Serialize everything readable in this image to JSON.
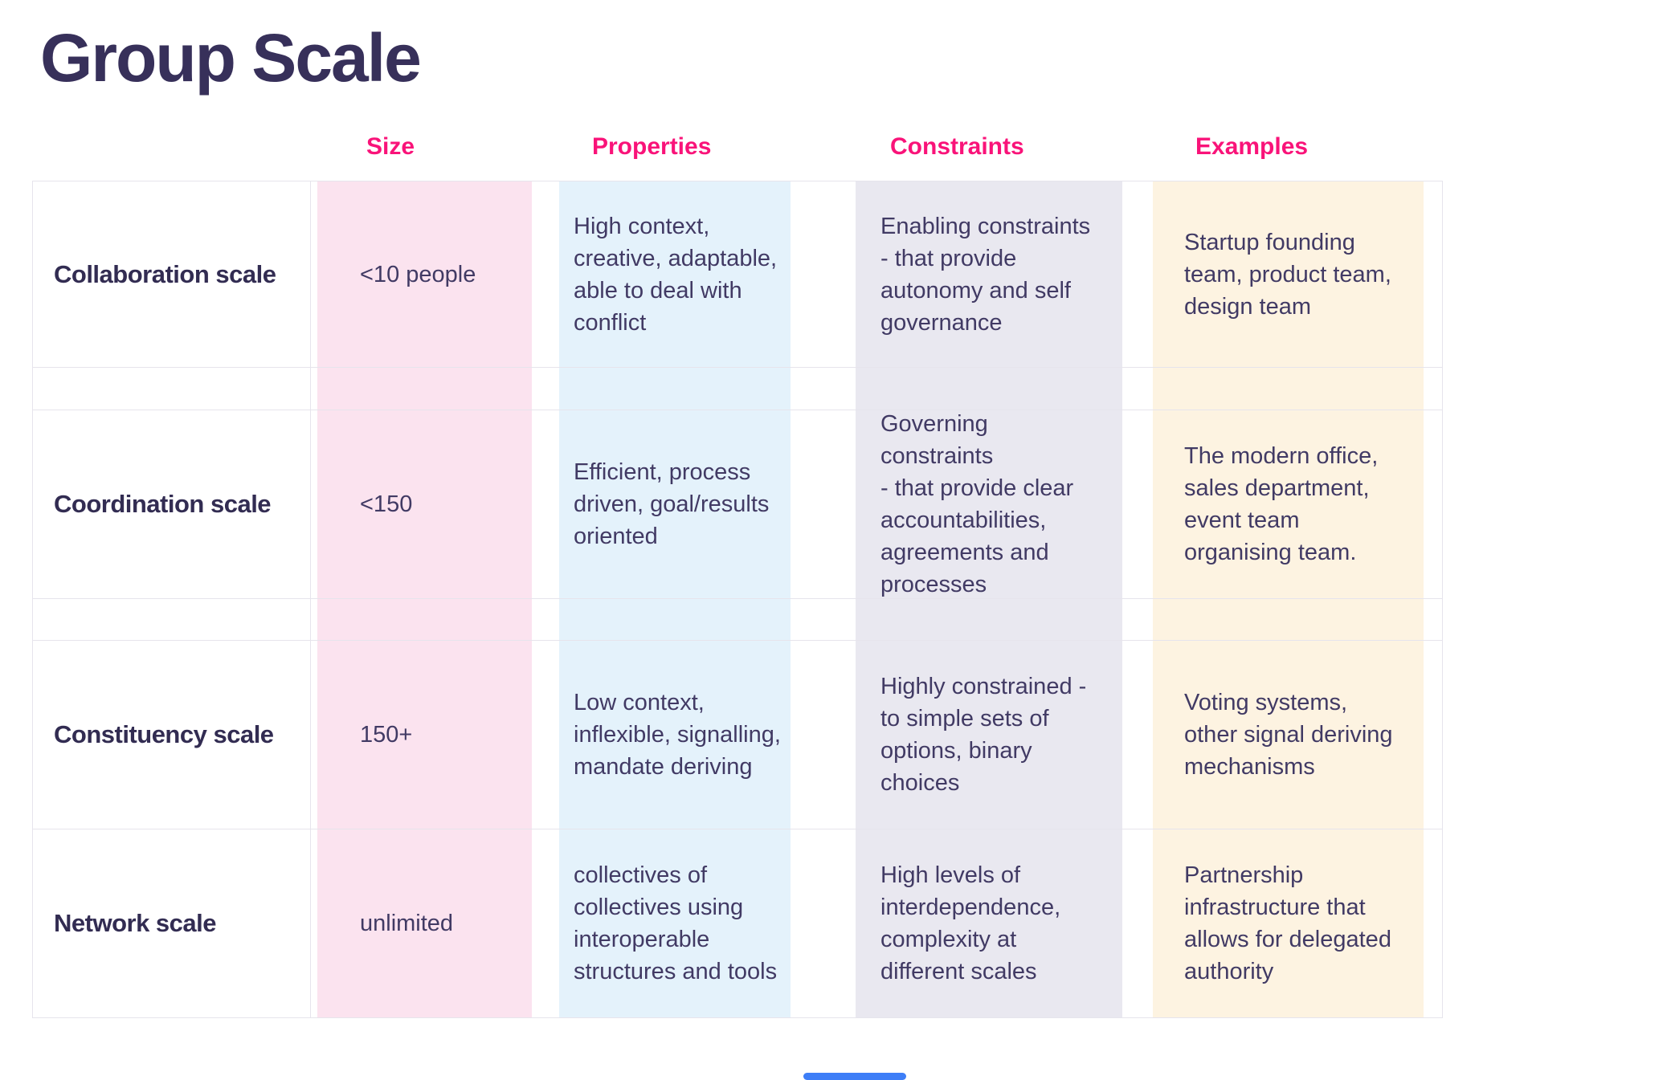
{
  "page": {
    "title": "Group Scale"
  },
  "colors": {
    "title_text": "#37305A",
    "header_text": "#F91379",
    "label_text": "#322C52",
    "body_text": "#413A64",
    "size_band": "#FBE3EF",
    "properties_band": "#E4F2FB",
    "constraints_band": "#E9E8F0",
    "examples_band": "#FDF3E1",
    "row_border": "#E6E4EC",
    "scrollbar": "#3E7EF7"
  },
  "table": {
    "columns": [
      {
        "key": "size",
        "label": "Size"
      },
      {
        "key": "properties",
        "label": "Properties"
      },
      {
        "key": "constraints",
        "label": "Constraints"
      },
      {
        "key": "examples",
        "label": "Examples"
      }
    ],
    "rows": [
      {
        "label": "Collaboration scale",
        "size": "<10 people",
        "properties": "High context,\ncreative, adaptable,\nable to deal with\nconflict",
        "constraints": "Enabling constraints\n- that provide\nautonomy and self\ngovernance",
        "examples": "Startup founding\nteam, product team,\ndesign team"
      },
      {
        "label": "Coordination scale",
        "size": "<150",
        "properties": "Efficient, process\ndriven, goal/results\noriented",
        "constraints": "Governing constraints\n- that provide clear\naccountabilities,\nagreements and\nprocesses",
        "examples": "The modern office,\nsales department,\nevent team\norganising team."
      },
      {
        "label": "Constituency scale",
        "size": "150+",
        "properties": "Low context,\ninflexible, signalling,\nmandate deriving",
        "constraints": "Highly constrained -\nto simple sets of\noptions, binary\nchoices",
        "examples": "Voting systems,\nother signal deriving\nmechanisms"
      },
      {
        "label": "Network scale",
        "size": "unlimited",
        "properties": "collectives of\ncollectives using\ninteroperable\nstructures and tools",
        "constraints": "High levels of\ninterdependence,\ncomplexity at\ndifferent scales",
        "examples": "Partnership\ninfrastructure that\nallows for delegated\nauthority"
      }
    ]
  }
}
